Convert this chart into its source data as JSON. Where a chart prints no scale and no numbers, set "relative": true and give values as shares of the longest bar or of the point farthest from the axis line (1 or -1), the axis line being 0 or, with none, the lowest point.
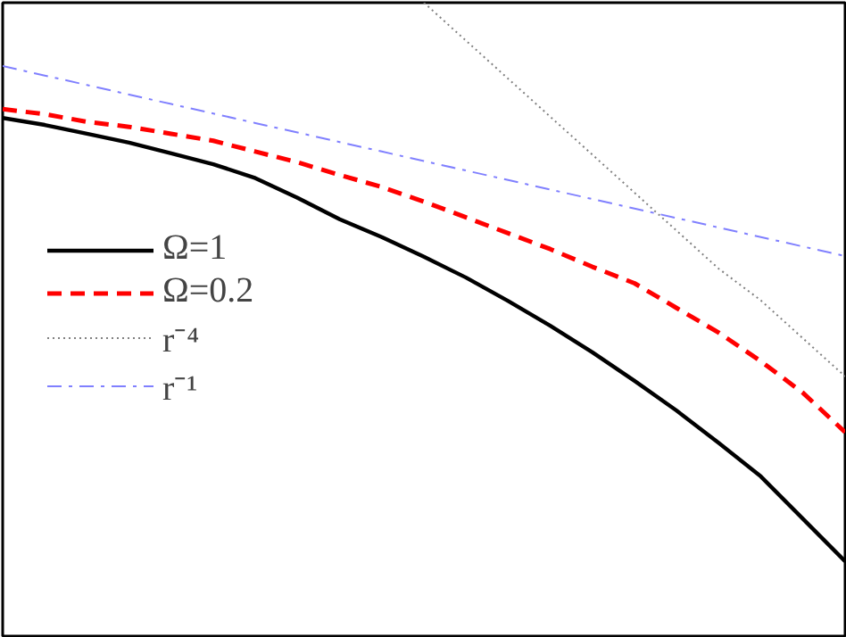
{
  "chart_data": {
    "type": "line",
    "relative": true,
    "tick_labels": false,
    "grid": false,
    "legend": "left",
    "categories": [
      null,
      null,
      null,
      null,
      null,
      null,
      null,
      null,
      null,
      null,
      null,
      null,
      null,
      null,
      null,
      null,
      null,
      null,
      null,
      null,
      null
    ],
    "series": [
      {
        "name": "Ω=1",
        "color": "#000000",
        "line_style": "solid",
        "values": [
          0.818,
          0.807,
          0.793,
          0.779,
          0.762,
          0.745,
          0.723,
          0.692,
          0.658,
          0.63,
          0.599,
          0.566,
          0.529,
          0.49,
          0.448,
          0.403,
          0.356,
          0.305,
          0.252,
          0.185,
          0.118
        ]
      },
      {
        "name": "Ω=0.2",
        "color": "#ff0000",
        "line_style": "dashed",
        "values": [
          0.832,
          0.824,
          0.812,
          0.804,
          0.793,
          0.782,
          0.765,
          0.748,
          0.728,
          0.709,
          0.686,
          0.661,
          0.636,
          0.611,
          0.583,
          0.557,
          0.518,
          0.479,
          0.434,
          0.384,
          0.322
        ]
      },
      {
        "name": "r⁻⁴",
        "color": "#808080",
        "line_style": "dotted",
        "values": [
          null,
          null,
          null,
          null,
          null,
          null,
          null,
          null,
          null,
          null,
          1.0,
          0.94,
          0.88,
          0.82,
          0.76,
          0.7,
          0.64,
          0.58,
          0.53,
          0.47,
          0.41
        ]
      },
      {
        "name": "r⁻¹",
        "color": "#8080ff",
        "line_style": "dashdot",
        "values": [
          0.9,
          0.885,
          0.87,
          0.855,
          0.84,
          0.825,
          0.81,
          0.795,
          0.78,
          0.765,
          0.75,
          0.735,
          0.72,
          0.705,
          0.69,
          0.675,
          0.66,
          0.645,
          0.63,
          0.615,
          0.6
        ]
      }
    ]
  }
}
